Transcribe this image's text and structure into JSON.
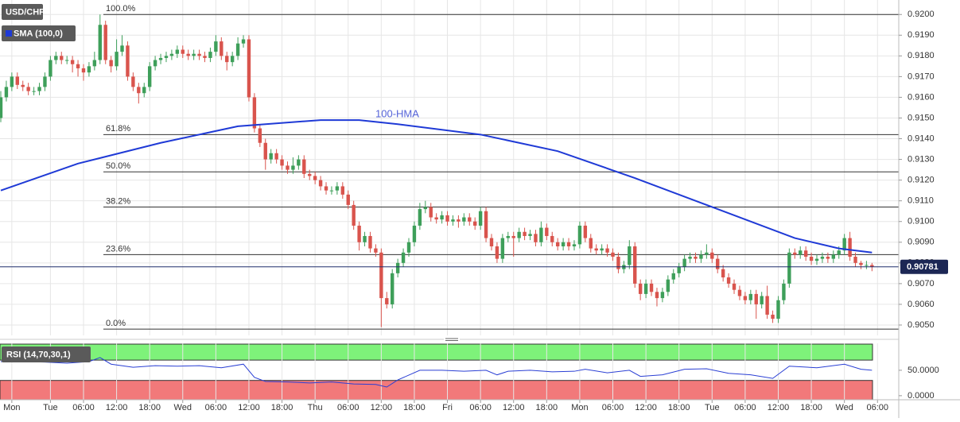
{
  "chart_data": [
    {
      "type": "candlestick",
      "title": "USD/CHF",
      "x": [
        0,
        1,
        2,
        3,
        4,
        5,
        6,
        7,
        8,
        9,
        10,
        11,
        12,
        13,
        14,
        15,
        16,
        17,
        18,
        19,
        20,
        21,
        22,
        23,
        24,
        25,
        26,
        27,
        28,
        29,
        30,
        31,
        32,
        33,
        34,
        35,
        36,
        37,
        38,
        39,
        40,
        41,
        42,
        43,
        44,
        45,
        46,
        47,
        48,
        49,
        50,
        51,
        52,
        53,
        54,
        55,
        56,
        57,
        58,
        59,
        60,
        61,
        62,
        63,
        64,
        65,
        66,
        67,
        68,
        69,
        70,
        71,
        72,
        73,
        74,
        75,
        76,
        77,
        78,
        79,
        80,
        81,
        82,
        83,
        84,
        85,
        86,
        87,
        88,
        89,
        90,
        91,
        92,
        93,
        94,
        95,
        96,
        97,
        98,
        99,
        100,
        101,
        102,
        103,
        104,
        105,
        106,
        107,
        108,
        109,
        110,
        111,
        112,
        113,
        114,
        115,
        116,
        117,
        118,
        119,
        120,
        121,
        122,
        123,
        124,
        125,
        126,
        127,
        128,
        129,
        130,
        131,
        132,
        133,
        134,
        135,
        136,
        137,
        138,
        139,
        140,
        141,
        142,
        143,
        144,
        145,
        146,
        147,
        148,
        149,
        150,
        151,
        152,
        153,
        154,
        155,
        156,
        157,
        158
      ],
      "open": [
        0.915,
        0.916,
        0.9165,
        0.917,
        0.9166,
        0.9165,
        0.9163,
        0.9163,
        0.9165,
        0.917,
        0.9178,
        0.918,
        0.9178,
        0.9178,
        0.9176,
        0.9174,
        0.9172,
        0.9175,
        0.9178,
        0.9195,
        0.9178,
        0.9175,
        0.9182,
        0.9185,
        0.917,
        0.9165,
        0.9162,
        0.9165,
        0.9175,
        0.9178,
        0.9179,
        0.918,
        0.9181,
        0.9183,
        0.9181,
        0.918,
        0.9181,
        0.918,
        0.9179,
        0.9182,
        0.9187,
        0.918,
        0.9177,
        0.918,
        0.9186,
        0.9188,
        0.916,
        0.9145,
        0.9138,
        0.913,
        0.9133,
        0.913,
        0.9127,
        0.9125,
        0.9127,
        0.913,
        0.9123,
        0.9122,
        0.912,
        0.9117,
        0.9115,
        0.9115,
        0.9117,
        0.9113,
        0.9108,
        0.9098,
        0.909,
        0.9093,
        0.9087,
        0.9085,
        0.9063,
        0.906,
        0.9075,
        0.908,
        0.9085,
        0.909,
        0.9098,
        0.9106,
        0.9107,
        0.9102,
        0.9101,
        0.9103,
        0.91,
        0.9101,
        0.91,
        0.9102,
        0.91,
        0.9098,
        0.9105,
        0.9092,
        0.9088,
        0.9082,
        0.9092,
        0.9093,
        0.9092,
        0.9095,
        0.9093,
        0.9094,
        0.909,
        0.9097,
        0.9093,
        0.909,
        0.9088,
        0.909,
        0.9088,
        0.9089,
        0.9098,
        0.9092,
        0.9087,
        0.9086,
        0.9087,
        0.9085,
        0.9083,
        0.9077,
        0.9079,
        0.9088,
        0.907,
        0.9065,
        0.907,
        0.9066,
        0.9063,
        0.9066,
        0.9072,
        0.9075,
        0.9078,
        0.9082,
        0.9083,
        0.9082,
        0.9084,
        0.9085,
        0.9082,
        0.9077,
        0.9073,
        0.907,
        0.9067,
        0.9064,
        0.9062,
        0.9065,
        0.906,
        0.9064,
        0.9055,
        0.9053,
        0.9062,
        0.907,
        0.9085,
        0.9084,
        0.9086,
        0.9083,
        0.9081,
        0.9082,
        0.9083,
        0.9082,
        0.9084,
        0.9086,
        0.9092,
        0.9083,
        0.908,
        0.9079,
        0.9079
      ],
      "high": [
        0.9163,
        0.9168,
        0.9172,
        0.9172,
        0.9168,
        0.9167,
        0.9165,
        0.9167,
        0.9172,
        0.918,
        0.9182,
        0.9182,
        0.918,
        0.918,
        0.9178,
        0.9176,
        0.9177,
        0.9182,
        0.92,
        0.9197,
        0.918,
        0.9188,
        0.919,
        0.9187,
        0.9172,
        0.9167,
        0.9167,
        0.9177,
        0.918,
        0.9181,
        0.9182,
        0.9183,
        0.9185,
        0.9185,
        0.9183,
        0.9183,
        0.9183,
        0.9182,
        0.9184,
        0.919,
        0.9189,
        0.9182,
        0.9182,
        0.9189,
        0.919,
        0.919,
        0.9162,
        0.9147,
        0.914,
        0.9135,
        0.9135,
        0.9132,
        0.9129,
        0.9131,
        0.9132,
        0.9132,
        0.9125,
        0.9124,
        0.9122,
        0.9119,
        0.9117,
        0.9119,
        0.9119,
        0.9115,
        0.911,
        0.91,
        0.9095,
        0.9095,
        0.9089,
        0.9087,
        0.9066,
        0.9077,
        0.9082,
        0.9087,
        0.9092,
        0.91,
        0.9109,
        0.911,
        0.9109,
        0.9104,
        0.9105,
        0.9105,
        0.9103,
        0.9103,
        0.9104,
        0.9104,
        0.9102,
        0.9107,
        0.9107,
        0.9094,
        0.909,
        0.9094,
        0.9095,
        0.9095,
        0.9097,
        0.9097,
        0.9096,
        0.9096,
        0.91,
        0.9099,
        0.9095,
        0.9092,
        0.9092,
        0.9092,
        0.9091,
        0.91,
        0.91,
        0.9094,
        0.9089,
        0.9089,
        0.9089,
        0.9087,
        0.9085,
        0.9081,
        0.9091,
        0.909,
        0.9072,
        0.9072,
        0.9072,
        0.9068,
        0.9068,
        0.9074,
        0.9077,
        0.908,
        0.9084,
        0.9085,
        0.9085,
        0.9086,
        0.9089,
        0.9087,
        0.9084,
        0.9079,
        0.9075,
        0.9072,
        0.9069,
        0.9066,
        0.9067,
        0.9067,
        0.9066,
        0.9069,
        0.9057,
        0.9064,
        0.9072,
        0.9087,
        0.9087,
        0.9088,
        0.9088,
        0.9085,
        0.9084,
        0.9085,
        0.9085,
        0.9086,
        0.9088,
        0.9094,
        0.9095,
        0.9085,
        0.9081,
        0.9081,
        0.908
      ],
      "low": [
        0.9148,
        0.9158,
        0.9163,
        0.9164,
        0.9163,
        0.9161,
        0.9161,
        0.9161,
        0.9163,
        0.9168,
        0.9176,
        0.9176,
        0.9176,
        0.9172,
        0.917,
        0.9168,
        0.917,
        0.9173,
        0.9176,
        0.9176,
        0.9172,
        0.9173,
        0.918,
        0.9168,
        0.9163,
        0.9157,
        0.916,
        0.9163,
        0.9173,
        0.9176,
        0.9177,
        0.9178,
        0.9179,
        0.9179,
        0.9178,
        0.9178,
        0.9178,
        0.9177,
        0.9177,
        0.918,
        0.9178,
        0.9173,
        0.9175,
        0.9178,
        0.9184,
        0.9158,
        0.9143,
        0.9136,
        0.9125,
        0.9128,
        0.9128,
        0.9125,
        0.9123,
        0.9123,
        0.9125,
        0.9121,
        0.912,
        0.9118,
        0.9115,
        0.9113,
        0.9113,
        0.9113,
        0.9111,
        0.9106,
        0.9096,
        0.9086,
        0.9088,
        0.9085,
        0.9083,
        0.9049,
        0.9058,
        0.9058,
        0.9073,
        0.9078,
        0.9083,
        0.9088,
        0.9096,
        0.9104,
        0.91,
        0.9099,
        0.9099,
        0.9098,
        0.9098,
        0.9097,
        0.9098,
        0.9098,
        0.9096,
        0.9096,
        0.909,
        0.9086,
        0.908,
        0.908,
        0.909,
        0.9083,
        0.909,
        0.9091,
        0.9091,
        0.9088,
        0.9088,
        0.9091,
        0.9088,
        0.9086,
        0.9086,
        0.9086,
        0.9086,
        0.9087,
        0.909,
        0.9085,
        0.9084,
        0.9084,
        0.9083,
        0.9081,
        0.9075,
        0.9075,
        0.9077,
        0.9068,
        0.9062,
        0.9063,
        0.9064,
        0.9059,
        0.9061,
        0.9064,
        0.907,
        0.9073,
        0.9076,
        0.908,
        0.908,
        0.908,
        0.9082,
        0.908,
        0.9075,
        0.9071,
        0.9068,
        0.9065,
        0.9062,
        0.906,
        0.906,
        0.9053,
        0.9058,
        0.9053,
        0.9051,
        0.9051,
        0.906,
        0.9068,
        0.9082,
        0.9082,
        0.9081,
        0.9079,
        0.9079,
        0.908,
        0.908,
        0.908,
        0.9082,
        0.9084,
        0.9081,
        0.9078,
        0.9077,
        0.9077,
        0.9076
      ],
      "close": [
        0.916,
        0.9165,
        0.917,
        0.9166,
        0.9165,
        0.9163,
        0.9163,
        0.9165,
        0.917,
        0.9178,
        0.918,
        0.9178,
        0.9178,
        0.9176,
        0.9174,
        0.9172,
        0.9175,
        0.9178,
        0.9195,
        0.9178,
        0.9175,
        0.9182,
        0.9185,
        0.917,
        0.9165,
        0.9162,
        0.9165,
        0.9175,
        0.9178,
        0.9179,
        0.918,
        0.9181,
        0.9183,
        0.9181,
        0.918,
        0.9181,
        0.918,
        0.9179,
        0.9182,
        0.9187,
        0.918,
        0.9177,
        0.918,
        0.9186,
        0.9188,
        0.916,
        0.9145,
        0.9138,
        0.913,
        0.9133,
        0.913,
        0.9127,
        0.9125,
        0.9127,
        0.913,
        0.9123,
        0.9122,
        0.912,
        0.9117,
        0.9115,
        0.9115,
        0.9117,
        0.9113,
        0.9108,
        0.9098,
        0.909,
        0.9093,
        0.9087,
        0.9085,
        0.9063,
        0.906,
        0.9075,
        0.908,
        0.9085,
        0.909,
        0.9098,
        0.9106,
        0.9107,
        0.9102,
        0.9101,
        0.9103,
        0.91,
        0.9101,
        0.91,
        0.9102,
        0.91,
        0.9098,
        0.9105,
        0.9092,
        0.9088,
        0.9082,
        0.9092,
        0.9093,
        0.9092,
        0.9095,
        0.9093,
        0.9094,
        0.909,
        0.9097,
        0.9093,
        0.909,
        0.9088,
        0.909,
        0.9088,
        0.9089,
        0.9098,
        0.9092,
        0.9087,
        0.9086,
        0.9087,
        0.9085,
        0.9083,
        0.9077,
        0.9079,
        0.9088,
        0.907,
        0.9065,
        0.907,
        0.9066,
        0.9063,
        0.9066,
        0.9072,
        0.9075,
        0.9078,
        0.9082,
        0.9083,
        0.9082,
        0.9084,
        0.9085,
        0.9082,
        0.9077,
        0.9073,
        0.907,
        0.9067,
        0.9064,
        0.9062,
        0.9065,
        0.906,
        0.9064,
        0.9055,
        0.9053,
        0.9062,
        0.907,
        0.9085,
        0.9084,
        0.9086,
        0.9083,
        0.9081,
        0.9082,
        0.9083,
        0.9082,
        0.9084,
        0.9086,
        0.9092,
        0.9083,
        0.908,
        0.9079,
        0.9079,
        0.90781
      ],
      "up_color": "#3e9f5a",
      "down_color": "#d9544d",
      "series": [
        {
          "name": "SMA (100,0)",
          "color": "#1f3ad6",
          "x": [
            0,
            14,
            29,
            43,
            58,
            65,
            72,
            87,
            101,
            115,
            130,
            144,
            152,
            158
          ],
          "values": [
            0.9115,
            0.9128,
            0.9138,
            0.9146,
            0.9149,
            0.9149,
            0.9147,
            0.9142,
            0.9134,
            0.9121,
            0.9106,
            0.9092,
            0.9087,
            0.9085
          ]
        }
      ],
      "annotation": "100-HMA",
      "fib_levels": [
        {
          "value": 0.92,
          "label": "100.0%"
        },
        {
          "value": 0.9142,
          "label": "61.8%"
        },
        {
          "value": 0.9124,
          "label": "50.0%"
        },
        {
          "value": 0.9107,
          "label": "38.2%"
        },
        {
          "value": 0.9084,
          "label": "23.6%"
        },
        {
          "value": 0.9048,
          "label": "0.0%"
        }
      ],
      "last_price": 0.90781,
      "xlim": [
        0,
        163
      ],
      "ylim": [
        0.9045,
        0.9207
      ],
      "xticks": [
        {
          "value": 2,
          "label": "Mon"
        },
        {
          "value": 9,
          "label": "Tue"
        },
        {
          "value": 15,
          "label": "06:00"
        },
        {
          "value": 21,
          "label": "12:00"
        },
        {
          "value": 27,
          "label": "18:00"
        },
        {
          "value": 33,
          "label": "Wed"
        },
        {
          "value": 39,
          "label": "06:00"
        },
        {
          "value": 45,
          "label": "12:00"
        },
        {
          "value": 51,
          "label": "18:00"
        },
        {
          "value": 57,
          "label": "Thu"
        },
        {
          "value": 63,
          "label": "06:00"
        },
        {
          "value": 69,
          "label": "12:00"
        },
        {
          "value": 75,
          "label": "18:00"
        },
        {
          "value": 81,
          "label": "Fri"
        },
        {
          "value": 87,
          "label": "06:00"
        },
        {
          "value": 93,
          "label": "12:00"
        },
        {
          "value": 99,
          "label": "18:00"
        },
        {
          "value": 105,
          "label": "Mon"
        },
        {
          "value": 111,
          "label": "06:00"
        },
        {
          "value": 117,
          "label": "12:00"
        },
        {
          "value": 123,
          "label": "18:00"
        },
        {
          "value": 129,
          "label": "Tue"
        },
        {
          "value": 135,
          "label": "06:00"
        },
        {
          "value": 141,
          "label": "12:00"
        },
        {
          "value": 147,
          "label": "18:00"
        },
        {
          "value": 153,
          "label": "Wed"
        },
        {
          "value": 159,
          "label": "06:00"
        }
      ],
      "yticks": [
        {
          "value": 0.905,
          "label": "0.9050"
        },
        {
          "value": 0.906,
          "label": "0.9060"
        },
        {
          "value": 0.907,
          "label": "0.9070"
        },
        {
          "value": 0.908,
          "label": "0.9080"
        },
        {
          "value": 0.909,
          "label": "0.9090"
        },
        {
          "value": 0.91,
          "label": "0.9100"
        },
        {
          "value": 0.911,
          "label": "0.9110"
        },
        {
          "value": 0.912,
          "label": "0.9120"
        },
        {
          "value": 0.913,
          "label": "0.9130"
        },
        {
          "value": 0.914,
          "label": "0.9140"
        },
        {
          "value": 0.915,
          "label": "0.9150"
        },
        {
          "value": 0.916,
          "label": "0.9160"
        },
        {
          "value": 0.917,
          "label": "0.9170"
        },
        {
          "value": 0.918,
          "label": "0.9180"
        },
        {
          "value": 0.919,
          "label": "0.9190"
        },
        {
          "value": 0.92,
          "label": "0.9200"
        }
      ],
      "grid": true
    },
    {
      "type": "line",
      "title": "RSI (14,70,30,1)",
      "color": "#2a3fd4",
      "x": [
        0,
        4,
        8,
        12,
        16,
        18,
        20,
        24,
        28,
        32,
        36,
        40,
        44,
        46,
        48,
        52,
        56,
        60,
        64,
        68,
        70,
        72,
        76,
        80,
        84,
        88,
        90,
        92,
        96,
        100,
        104,
        106,
        110,
        114,
        116,
        120,
        124,
        128,
        132,
        136,
        140,
        143,
        148,
        153,
        156,
        158
      ],
      "values": [
        67,
        67,
        66,
        64,
        67,
        75,
        62,
        56,
        59,
        58,
        59,
        55,
        62,
        36,
        28,
        27,
        25,
        27,
        23,
        22,
        17,
        31,
        50,
        50,
        48,
        50,
        41,
        48,
        50,
        47,
        48,
        52,
        45,
        50,
        38,
        41,
        52,
        53,
        44,
        41,
        34,
        58,
        55,
        62,
        52,
        50
      ],
      "overbought": 70,
      "oversold": 30,
      "overbought_color": "#7ef27a",
      "oversold_color": "#f2797a",
      "ylim": [
        -8,
        103
      ],
      "yticks": [
        {
          "value": 0,
          "label": "0.0000"
        },
        {
          "value": 50,
          "label": "50.0000"
        }
      ]
    }
  ]
}
